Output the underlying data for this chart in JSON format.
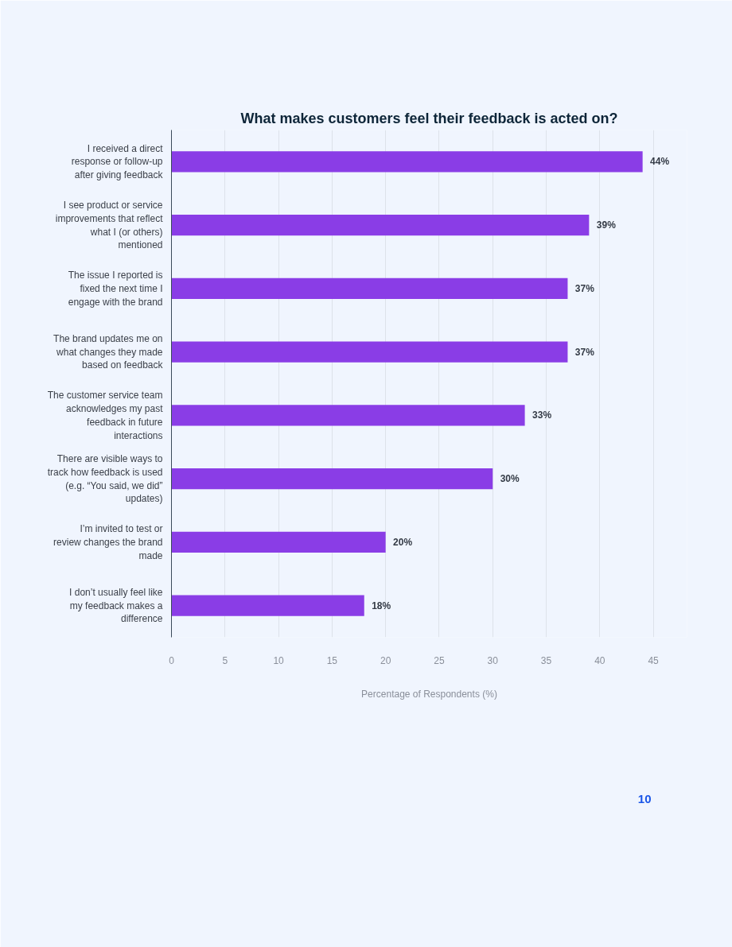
{
  "chart_data": {
    "type": "bar",
    "orientation": "horizontal",
    "title": "What makes customers feel their feedback is acted on?",
    "categories": [
      "I received a direct response or follow-up after giving feedback",
      "I see product or service improvements that reflect what I (or others) mentioned",
      "The issue I reported is fixed the next time I engage with the brand",
      "The brand updates me on what changes they made based on feedback",
      "The customer service team acknowledges my past feedback in future interactions",
      "There are visible ways to track how feedback is used (e.g. “You said, we did” updates)",
      "I’m invited to test or review changes the brand made",
      "I don’t usually feel like my feedback makes a difference"
    ],
    "values": [
      44,
      39,
      37,
      37,
      33,
      30,
      20,
      18
    ],
    "value_labels": [
      "44%",
      "39%",
      "37%",
      "37%",
      "33%",
      "30%",
      "20%",
      "18%"
    ],
    "color": "#8a3de6",
    "xlim": [
      0,
      45
    ],
    "xticks": [
      0,
      5,
      10,
      15,
      20,
      25,
      30,
      35,
      40,
      45
    ],
    "xlabel": "Percentage of Respondents (%)",
    "grid": "x",
    "annotations": [
      "10"
    ]
  }
}
